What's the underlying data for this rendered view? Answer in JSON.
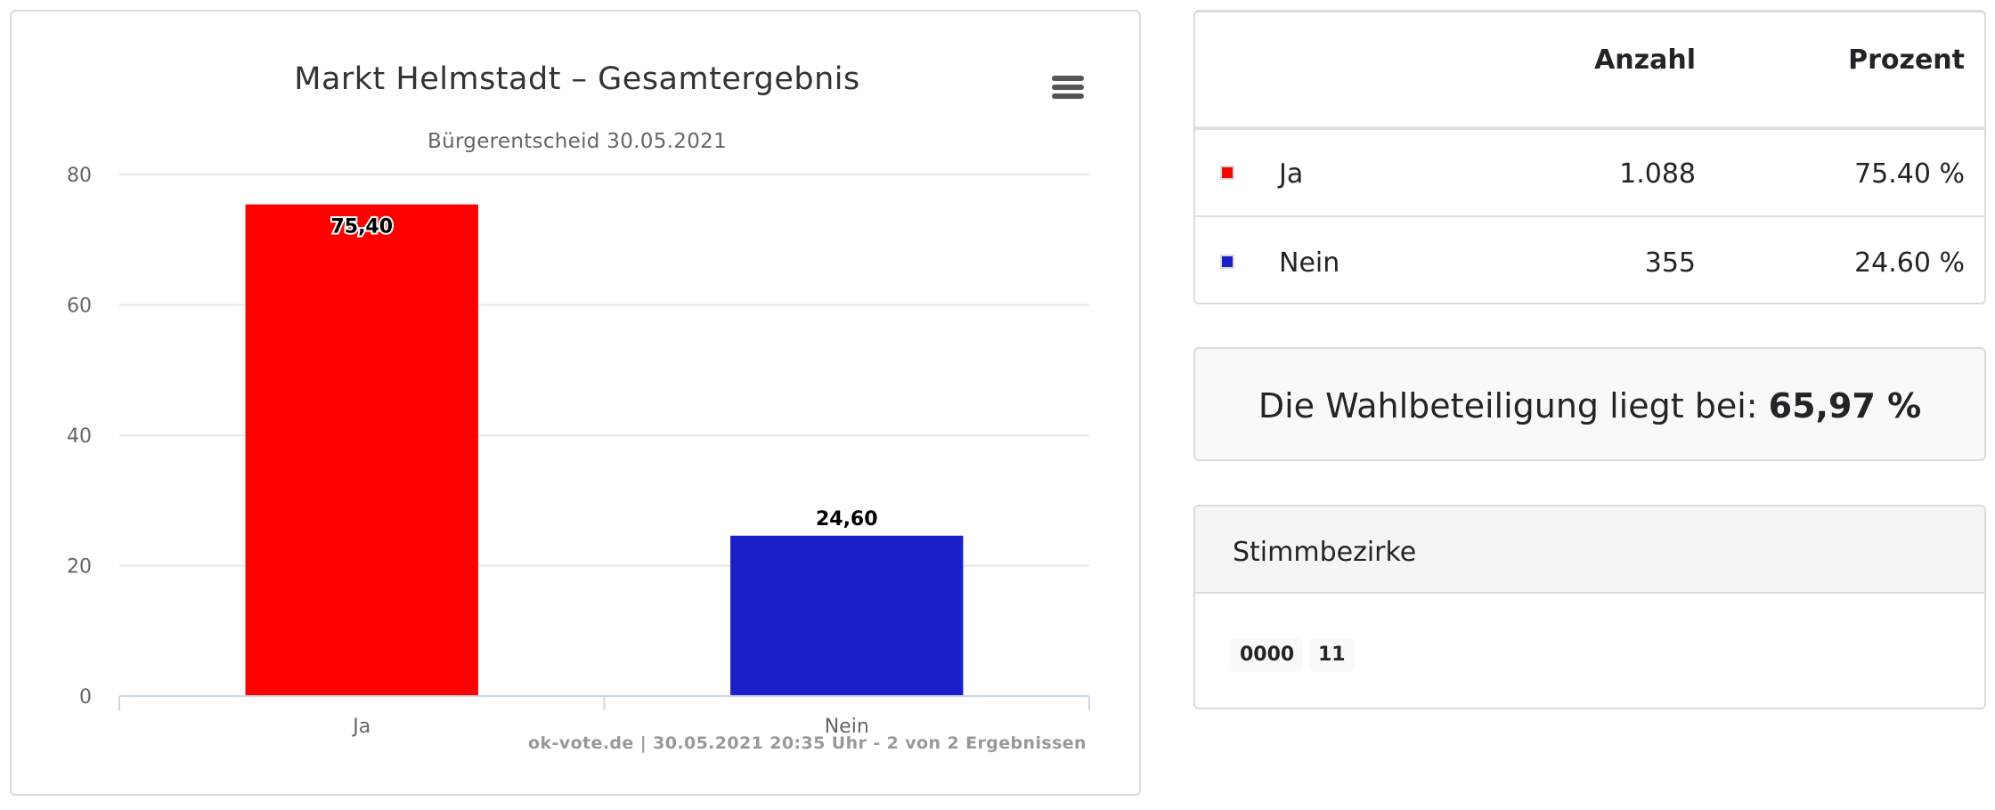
{
  "chart_data": {
    "type": "bar",
    "title": "Markt Helmstadt – Gesamtergebnis",
    "subtitle": "Bürgerentscheid 30.05.2021",
    "categories": [
      "Ja",
      "Nein"
    ],
    "values": [
      75.4,
      24.6
    ],
    "data_labels": [
      "75,40",
      "24,60"
    ],
    "colors": [
      "#ff0000",
      "#1a1fc8"
    ],
    "ylim": [
      0,
      80
    ],
    "yticks": [
      "0",
      "20",
      "40",
      "60",
      "80"
    ],
    "xlabel": "",
    "ylabel": "",
    "grid": true,
    "legend": "none",
    "credits": "ok-vote.de | 30.05.2021 20:35 Uhr - 2 von 2 Ergebnissen"
  },
  "results_table": {
    "headers": {
      "label": "",
      "count": "Anzahl",
      "percent": "Prozent"
    },
    "rows": [
      {
        "label": "Ja",
        "count": "1.088",
        "percent": "75.40 %",
        "color": "#ff0000"
      },
      {
        "label": "Nein",
        "count": "355",
        "percent": "24.60 %",
        "color": "#1a1fc8"
      }
    ]
  },
  "turnout": {
    "text": "Die Wahlbeteiligung liegt bei: ",
    "value": "65,97 %"
  },
  "districts": {
    "title": "Stimmbezirke",
    "items": [
      "0000",
      "11"
    ]
  },
  "icons": {
    "chart_menu": "hamburger-menu-icon"
  }
}
